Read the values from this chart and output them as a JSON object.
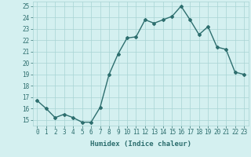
{
  "x": [
    0,
    1,
    2,
    3,
    4,
    5,
    6,
    7,
    8,
    9,
    10,
    11,
    12,
    13,
    14,
    15,
    16,
    17,
    18,
    19,
    20,
    21,
    22,
    23
  ],
  "y": [
    16.7,
    16.0,
    15.2,
    15.5,
    15.2,
    14.8,
    14.8,
    16.1,
    19.0,
    20.8,
    22.2,
    22.3,
    23.8,
    23.5,
    23.8,
    24.1,
    25.0,
    23.8,
    22.5,
    23.2,
    21.4,
    21.2,
    19.2,
    19.0
  ],
  "line_color": "#2d6e6e",
  "marker": "D",
  "marker_size": 2,
  "bg_color": "#d4f0f0",
  "grid_color": "#a8d4d4",
  "xlabel": "Humidex (Indice chaleur)",
  "ylim": [
    14.5,
    25.4
  ],
  "yticks": [
    15,
    16,
    17,
    18,
    19,
    20,
    21,
    22,
    23,
    24,
    25
  ],
  "xticks": [
    0,
    1,
    2,
    3,
    4,
    5,
    6,
    7,
    8,
    9,
    10,
    11,
    12,
    13,
    14,
    15,
    16,
    17,
    18,
    19,
    20,
    21,
    22,
    23
  ],
  "xlabel_fontsize": 6.5,
  "tick_fontsize": 5.5,
  "line_width": 1.0
}
